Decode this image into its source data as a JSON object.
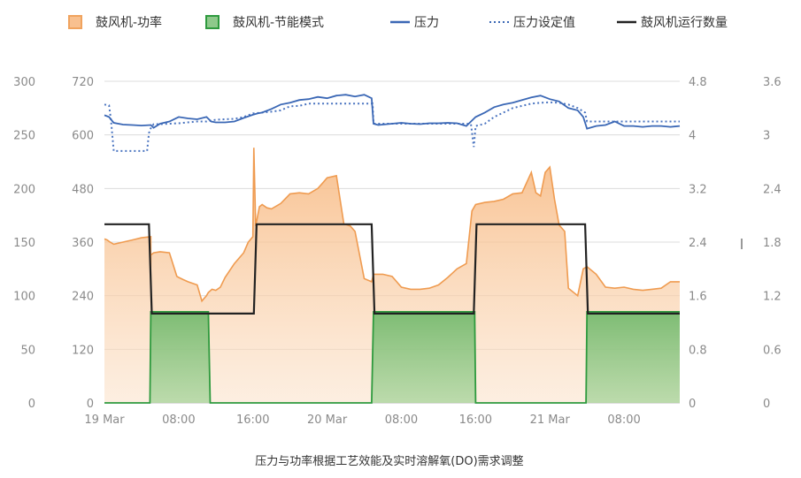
{
  "chart_data": {
    "type": "line",
    "caption": "压力与功率根据工艺效能及实时溶解氧(DO)需求调整",
    "legend": [
      {
        "key": "power",
        "label": "鼓风机-功率",
        "symbol": "box",
        "color": "#f0a35e",
        "fill": "#f8c08f"
      },
      {
        "key": "eco",
        "label": "鼓风机-节能模式",
        "symbol": "box",
        "color": "#2e9a3e",
        "fill": "#8ec98b"
      },
      {
        "key": "pressure",
        "label": "压力",
        "symbol": "line",
        "color": "#3a67b5"
      },
      {
        "key": "setpoint",
        "label": "压力设定值",
        "symbol": "dotted",
        "color": "#3a67b5"
      },
      {
        "key": "count",
        "label": "鼓风机运行数量",
        "symbol": "line",
        "color": "#222222"
      }
    ],
    "x_ticks": [
      "19 Mar",
      "08:00",
      "16:00",
      "20 Mar",
      "08:00",
      "16:00",
      "21 Mar",
      "08:00"
    ],
    "axes": {
      "left_outer": {
        "ticks": [
          "0",
          "50",
          "100",
          "150",
          "200",
          "250",
          "300"
        ],
        "range": [
          0,
          300
        ]
      },
      "left_inner": {
        "ticks": [
          "0",
          "120",
          "240",
          "360",
          "480",
          "600",
          "720"
        ],
        "range": [
          0,
          720
        ]
      },
      "right_inner": {
        "ticks": [
          "0",
          "0.8",
          "1.6",
          "2.4",
          "3.2",
          "4",
          "4.8"
        ],
        "range": [
          0,
          4.8
        ]
      },
      "right_outer": {
        "ticks": [
          "0",
          "0.6",
          "1.2",
          "1.8",
          "2.4",
          "3",
          "3.6"
        ],
        "range": [
          0,
          3.6
        ]
      }
    },
    "x_range_hours": [
      0,
      62
    ],
    "series": {
      "power": {
        "x": [
          0,
          0.3,
          0.6,
          1,
          2,
          3,
          4,
          5,
          4.98,
          5,
          5.3,
          6,
          7,
          7.8,
          8,
          8.5,
          9,
          10,
          10.5,
          11,
          11.2,
          11.6,
          12,
          12.5,
          13,
          14,
          15,
          15.5,
          16,
          16.1,
          16.3,
          16.7,
          17,
          17.5,
          18,
          19,
          20,
          21,
          22,
          23,
          23.5,
          24,
          25,
          25.8,
          26.5,
          27,
          28,
          28.8,
          29,
          29.5,
          30,
          31,
          32,
          33,
          34,
          35,
          36,
          37,
          38,
          39,
          39.6,
          40,
          40.5,
          41,
          42,
          43,
          44,
          45,
          46,
          46.5,
          47,
          47.5,
          48,
          48.5,
          49,
          49.6,
          50,
          51,
          51.6,
          52,
          53,
          54,
          55,
          56,
          57,
          58,
          59,
          60,
          61,
          62
        ],
        "y": [
          153,
          152,
          150,
          148,
          150,
          152,
          154,
          155,
          125,
          138,
          140,
          141,
          140,
          118,
          117,
          115,
          113,
          110,
          95,
          100,
          103,
          106,
          105,
          108,
          117,
          130,
          140,
          150,
          155,
          238,
          165,
          183,
          185,
          182,
          181,
          186,
          195,
          196,
          195,
          200,
          205,
          210,
          212,
          167,
          165,
          160,
          116,
          113,
          120,
          120,
          120,
          118,
          108,
          106,
          106,
          107,
          110,
          117,
          125,
          130,
          179,
          185,
          186,
          187,
          188,
          190,
          195,
          196,
          215,
          196,
          193,
          215,
          220,
          190,
          166,
          160,
          107,
          100,
          125,
          127,
          120,
          108,
          107,
          108,
          106,
          105,
          106,
          107,
          113,
          113
        ],
        "axis": "left_outer"
      },
      "eco": {
        "x": [
          0,
          4.9,
          5,
          11.2,
          11.4,
          28.8,
          29,
          39.9,
          40,
          51.9,
          52,
          62
        ],
        "y": [
          0,
          0,
          85,
          85,
          0,
          0,
          85,
          85,
          0,
          0,
          85,
          85
        ],
        "axis": "left_outer"
      },
      "pressure": {
        "x": [
          0,
          0.5,
          1,
          2,
          3,
          4,
          5,
          5.3,
          6,
          7,
          8,
          9,
          10,
          11,
          11.5,
          12,
          13,
          14,
          15,
          16,
          16.5,
          17,
          18,
          19,
          20,
          21,
          22,
          23,
          24,
          25,
          26,
          27,
          28,
          28.8,
          29,
          29.5,
          30,
          31,
          32,
          33,
          34,
          35,
          36,
          37,
          38,
          39,
          40,
          41,
          42,
          43,
          44,
          45,
          46,
          47,
          48,
          49,
          50,
          51,
          51.6,
          52,
          53,
          54,
          55,
          56,
          57,
          58,
          59,
          60,
          61,
          62
        ],
        "y": [
          644,
          640,
          627,
          623,
          622,
          621,
          622,
          616,
          625,
          630,
          640,
          637,
          635,
          640,
          630,
          628,
          628,
          630,
          638,
          645,
          648,
          650,
          658,
          668,
          672,
          678,
          680,
          685,
          682,
          688,
          690,
          686,
          690,
          682,
          625,
          622,
          623,
          625,
          627,
          625,
          624,
          626,
          626,
          627,
          626,
          620,
          640,
          650,
          662,
          668,
          672,
          678,
          684,
          688,
          680,
          675,
          660,
          655,
          640,
          614,
          620,
          622,
          630,
          620,
          620,
          618,
          620,
          620,
          618,
          620
        ],
        "axis": "left_inner"
      },
      "setpoint": {
        "x": [
          0,
          0.5,
          0.7,
          1,
          4.6,
          4.8,
          5,
          5.3,
          6,
          8,
          10,
          11,
          12,
          14,
          15,
          16,
          17,
          18,
          19,
          20,
          21,
          22,
          23,
          24,
          25,
          26,
          27,
          28,
          28.9,
          29,
          30,
          35,
          39,
          39.5,
          39.8,
          40,
          41,
          42,
          43,
          44,
          45,
          46,
          47,
          48,
          49,
          50,
          51,
          51.8,
          52,
          55,
          58,
          60,
          62
        ],
        "y": [
          668,
          666,
          635,
          564,
          564,
          604,
          615,
          624,
          624,
          626,
          630,
          630,
          634,
          636,
          640,
          648,
          650,
          652,
          655,
          664,
          665,
          670,
          670,
          670,
          670,
          670,
          670,
          670,
          670,
          625,
          625,
          625,
          625,
          624,
          573,
          620,
          625,
          640,
          650,
          660,
          665,
          670,
          672,
          673,
          672,
          668,
          660,
          650,
          630,
          630,
          630,
          630,
          630
        ],
        "axis": "left_inner"
      },
      "count": {
        "x": [
          0,
          4.8,
          5.1,
          16.1,
          16.4,
          28.8,
          29.1,
          39.8,
          40.1,
          51.8,
          52.1,
          62
        ],
        "y": [
          2,
          2,
          1,
          1,
          2,
          2,
          1,
          1,
          2,
          2,
          1,
          1
        ],
        "axis": "right_outer"
      }
    }
  }
}
